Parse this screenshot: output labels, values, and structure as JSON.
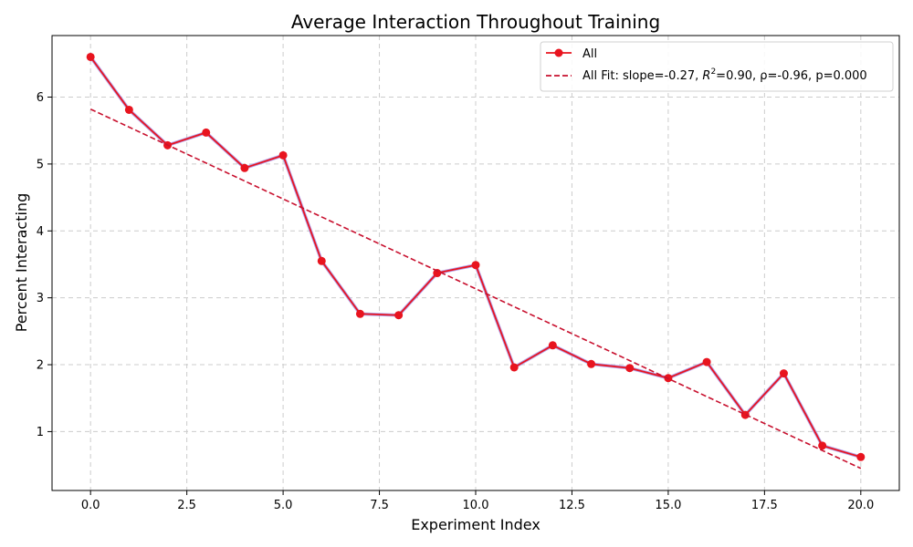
{
  "chart_data": {
    "type": "line",
    "title": "Average Interaction Throughout Training",
    "xlabel": "Experiment Index",
    "ylabel": "Percent Interacting",
    "xlim": [
      -1,
      21
    ],
    "ylim": [
      0.12,
      6.92
    ],
    "xticks": [
      0,
      2.5,
      5,
      7.5,
      10,
      12.5,
      15,
      17.5,
      20
    ],
    "xtick_labels": [
      "0.0",
      "2.5",
      "5.0",
      "7.5",
      "10.0",
      "12.5",
      "15.0",
      "17.5",
      "20.0"
    ],
    "yticks": [
      1,
      2,
      3,
      4,
      5,
      6
    ],
    "ytick_labels": [
      "1",
      "2",
      "3",
      "4",
      "5",
      "6"
    ],
    "grid": true,
    "legend_position": "top-right",
    "series": [
      {
        "name": "All",
        "style": "line-marker",
        "color": "#e8141f",
        "shadow_color": "#a593e8",
        "x": [
          0,
          1,
          2,
          3,
          4,
          5,
          6,
          7,
          8,
          9,
          10,
          11,
          12,
          13,
          14,
          15,
          16,
          17,
          18,
          19,
          20
        ],
        "values": [
          6.6,
          5.81,
          5.28,
          5.47,
          4.94,
          5.13,
          3.55,
          2.76,
          2.74,
          3.37,
          3.49,
          1.96,
          2.29,
          2.01,
          1.95,
          1.8,
          2.04,
          1.25,
          1.87,
          0.79,
          0.62
        ]
      },
      {
        "name": "All Fit: slope=-0.27, $R^2$=0.90, ρ=-0.96, p=0.000",
        "style": "dashed",
        "color": "#c8102e",
        "x": [
          0,
          20
        ],
        "values": [
          5.82,
          0.45
        ]
      }
    ]
  },
  "legend": {
    "series_label": "All",
    "fit_label_prefix": "All Fit: slope=-0.27, ",
    "fit_r": "R",
    "fit_r_sup": "2",
    "fit_label_suffix": "=0.90, ρ=-0.96, p=0.000"
  }
}
